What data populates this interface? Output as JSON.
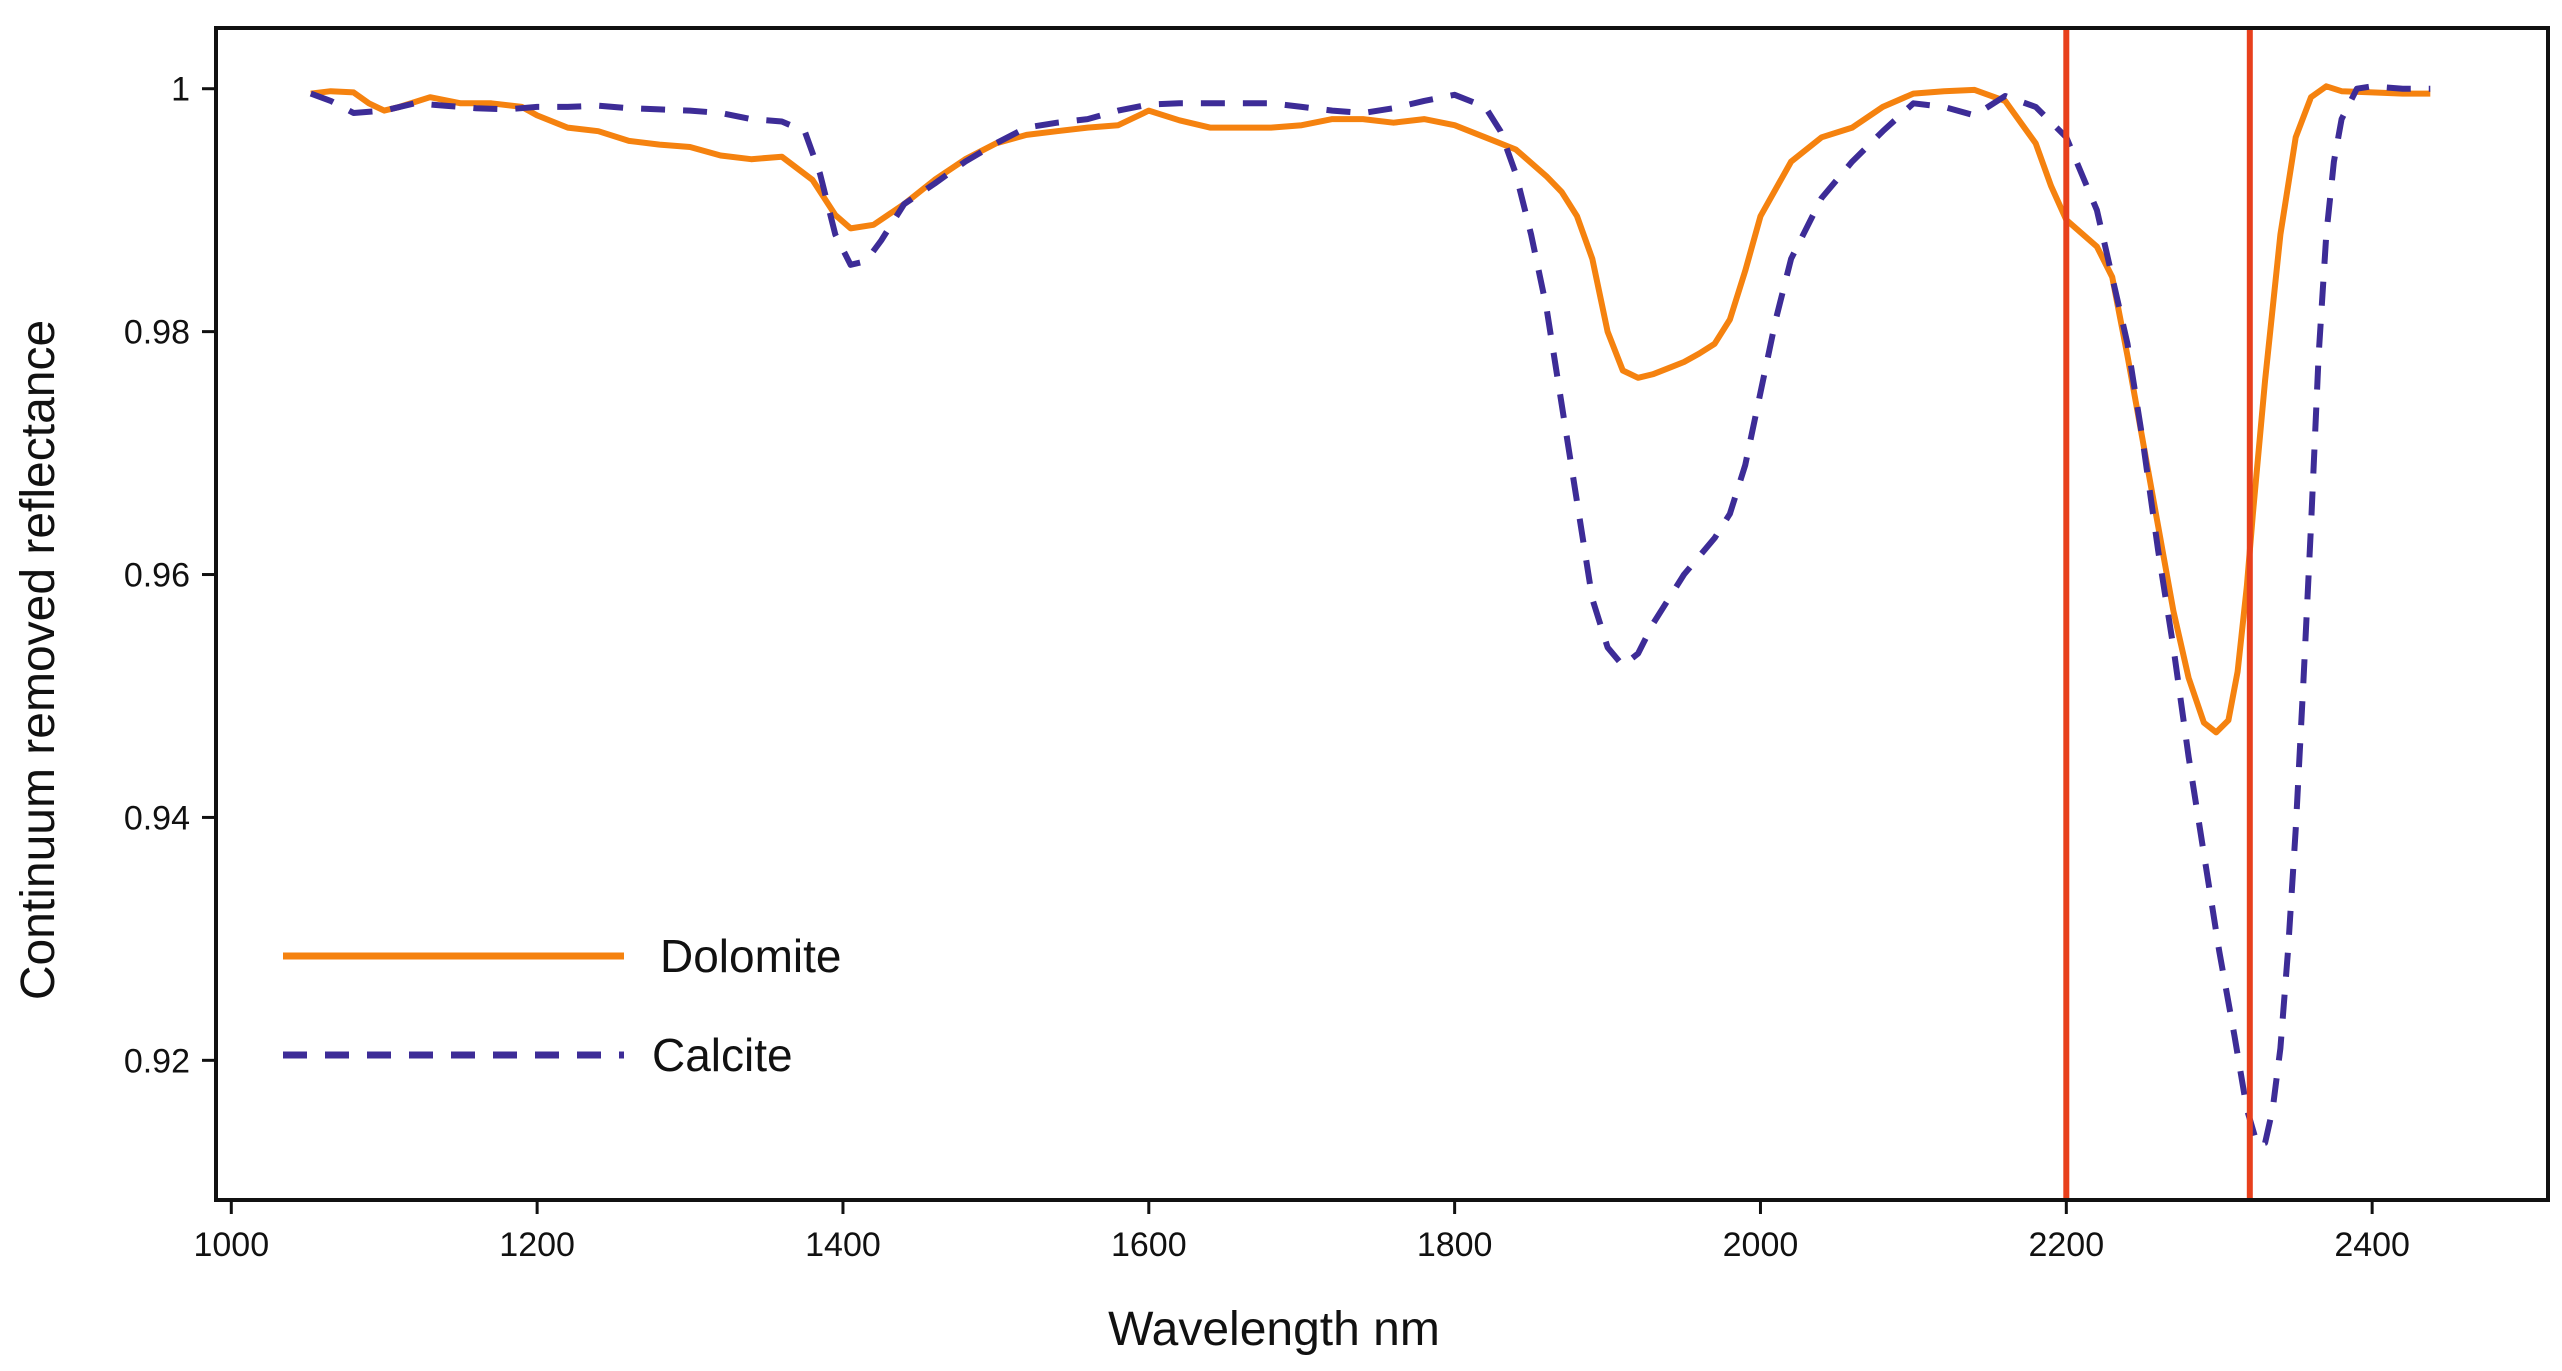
{
  "chart_data": {
    "type": "line",
    "title": "",
    "xlabel": "Wavelength nm",
    "ylabel": "Continuum removed reflectance",
    "xlim": [
      990,
      2515
    ],
    "ylim": [
      0.9085,
      1.005
    ],
    "xticks": [
      1000,
      1200,
      1400,
      1600,
      1800,
      2000,
      2200,
      2400
    ],
    "xtick_labels": [
      "1000",
      "1200",
      "1400",
      "1600",
      "1800",
      "2000",
      "2200",
      "2400"
    ],
    "yticks": [
      0.92,
      0.94,
      0.96,
      0.98,
      1.0
    ],
    "ytick_labels": [
      "0.92",
      "0.94",
      "0.96",
      "0.98",
      "1"
    ],
    "grid": false,
    "legend_position": "lower-left",
    "vertical_lines": [
      {
        "x": 2200,
        "color": "#e8401c"
      },
      {
        "x": 2320,
        "color": "#e8401c"
      }
    ],
    "series": [
      {
        "name": "Dolomite",
        "style": "solid",
        "color": "#f5820f",
        "x": [
          1052,
          1065,
          1080,
          1090,
          1100,
          1110,
          1130,
          1150,
          1170,
          1190,
          1200,
          1220,
          1240,
          1260,
          1280,
          1300,
          1320,
          1340,
          1360,
          1380,
          1395,
          1405,
          1420,
          1440,
          1460,
          1480,
          1500,
          1520,
          1540,
          1560,
          1580,
          1600,
          1620,
          1640,
          1660,
          1680,
          1700,
          1720,
          1740,
          1760,
          1780,
          1800,
          1820,
          1840,
          1860,
          1870,
          1880,
          1890,
          1900,
          1910,
          1920,
          1930,
          1940,
          1950,
          1960,
          1970,
          1980,
          1990,
          2000,
          2020,
          2040,
          2060,
          2080,
          2100,
          2120,
          2140,
          2160,
          2180,
          2190,
          2200,
          2220,
          2230,
          2240,
          2250,
          2260,
          2270,
          2280,
          2290,
          2298,
          2306,
          2312,
          2318,
          2322,
          2330,
          2340,
          2350,
          2360,
          2370,
          2380,
          2400,
          2420,
          2438
        ],
        "values": [
          0.9996,
          0.9998,
          0.9997,
          0.9988,
          0.9982,
          0.9985,
          0.9993,
          0.9988,
          0.9988,
          0.9985,
          0.9978,
          0.9968,
          0.9965,
          0.9957,
          0.9954,
          0.9952,
          0.9945,
          0.9942,
          0.9944,
          0.9925,
          0.9896,
          0.9885,
          0.9888,
          0.9905,
          0.9925,
          0.9942,
          0.9955,
          0.9962,
          0.9965,
          0.9968,
          0.997,
          0.9982,
          0.9974,
          0.9968,
          0.9968,
          0.9968,
          0.997,
          0.9975,
          0.9975,
          0.9972,
          0.9975,
          0.997,
          0.996,
          0.995,
          0.9928,
          0.9915,
          0.9895,
          0.986,
          0.98,
          0.9768,
          0.9762,
          0.9765,
          0.977,
          0.9775,
          0.9782,
          0.979,
          0.981,
          0.985,
          0.9895,
          0.994,
          0.996,
          0.9968,
          0.9985,
          0.9996,
          0.9998,
          0.9999,
          0.999,
          0.9955,
          0.992,
          0.9892,
          0.987,
          0.9845,
          0.978,
          0.971,
          0.964,
          0.957,
          0.9515,
          0.9478,
          0.947,
          0.948,
          0.952,
          0.959,
          0.965,
          0.976,
          0.988,
          0.996,
          0.9993,
          1.0002,
          0.9998,
          0.9997,
          0.9996,
          0.9996
        ]
      },
      {
        "name": "Calcite",
        "style": "dashed",
        "color": "#3d2c97",
        "x": [
          1052,
          1065,
          1080,
          1100,
          1120,
          1140,
          1160,
          1180,
          1200,
          1220,
          1240,
          1260,
          1280,
          1300,
          1320,
          1340,
          1360,
          1375,
          1385,
          1395,
          1405,
          1415,
          1425,
          1440,
          1460,
          1480,
          1500,
          1520,
          1540,
          1560,
          1580,
          1600,
          1620,
          1640,
          1660,
          1680,
          1700,
          1720,
          1740,
          1760,
          1780,
          1800,
          1820,
          1830,
          1840,
          1850,
          1860,
          1870,
          1880,
          1890,
          1900,
          1910,
          1920,
          1930,
          1940,
          1950,
          1960,
          1970,
          1980,
          1990,
          2000,
          2010,
          2020,
          2040,
          2060,
          2080,
          2100,
          2120,
          2140,
          2160,
          2180,
          2200,
          2220,
          2240,
          2250,
          2260,
          2270,
          2280,
          2290,
          2300,
          2310,
          2318,
          2325,
          2330,
          2335,
          2340,
          2345,
          2350,
          2355,
          2360,
          2365,
          2370,
          2375,
          2380,
          2390,
          2400,
          2420,
          2438
        ],
        "values": [
          0.9996,
          0.999,
          0.998,
          0.9982,
          0.9988,
          0.9986,
          0.9984,
          0.9983,
          0.9985,
          0.9985,
          0.9986,
          0.9984,
          0.9983,
          0.9982,
          0.998,
          0.9975,
          0.9973,
          0.9965,
          0.993,
          0.988,
          0.9855,
          0.9858,
          0.9875,
          0.9905,
          0.9922,
          0.994,
          0.9955,
          0.9968,
          0.9972,
          0.9975,
          0.9982,
          0.9987,
          0.9988,
          0.9988,
          0.9988,
          0.9988,
          0.9985,
          0.9982,
          0.998,
          0.9984,
          0.999,
          0.9995,
          0.9985,
          0.9965,
          0.993,
          0.988,
          0.982,
          0.974,
          0.966,
          0.958,
          0.954,
          0.9525,
          0.9535,
          0.956,
          0.958,
          0.96,
          0.9615,
          0.963,
          0.965,
          0.969,
          0.975,
          0.981,
          0.986,
          0.991,
          0.994,
          0.9965,
          0.9988,
          0.9985,
          0.9978,
          0.9994,
          0.9985,
          0.996,
          0.99,
          0.979,
          0.971,
          0.962,
          0.954,
          0.945,
          0.937,
          0.929,
          0.922,
          0.916,
          0.913,
          0.9132,
          0.916,
          0.921,
          0.929,
          0.939,
          0.951,
          0.964,
          0.978,
          0.988,
          0.994,
          0.9975,
          1.0,
          1.0002,
          1.0,
          1.0
        ]
      }
    ]
  }
}
